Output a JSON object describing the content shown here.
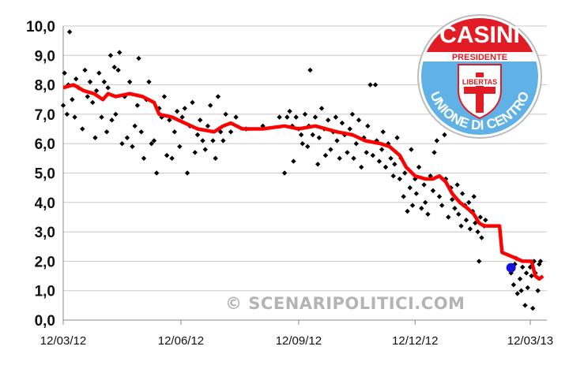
{
  "chart_data": {
    "type": "scatter",
    "x_axis": {
      "kind": "date",
      "start": "2012-03-12",
      "end": "2013-03-25",
      "ticks": [
        {
          "date": "2012-03-12",
          "label": "12/03/12"
        },
        {
          "date": "2012-06-12",
          "label": "12/06/12"
        },
        {
          "date": "2012-09-12",
          "label": "12/09/12"
        },
        {
          "date": "2012-12-12",
          "label": "12/12/12"
        },
        {
          "date": "2013-03-12",
          "label": "12/03/13"
        }
      ]
    },
    "y_axis": {
      "range": [
        0,
        10
      ],
      "ticks": [
        0,
        1,
        2,
        3,
        4,
        5,
        6,
        7,
        8,
        9,
        10
      ],
      "tick_labels": [
        "0,0",
        "1,0",
        "2,0",
        "3,0",
        "4,0",
        "5,0",
        "6,0",
        "7,0",
        "8,0",
        "9,0",
        "10,0"
      ]
    },
    "grid": "horizontal",
    "series": [
      {
        "kind": "polls-scatter",
        "color": "#000000",
        "points": [
          [
            "2012-03-12",
            7.3
          ],
          [
            "2012-03-13",
            8.4
          ],
          [
            "2012-03-15",
            7.0
          ],
          [
            "2012-03-16",
            8.0
          ],
          [
            "2012-03-17",
            9.8
          ],
          [
            "2012-03-19",
            7.5
          ],
          [
            "2012-03-21",
            6.9
          ],
          [
            "2012-03-22",
            8.2
          ],
          [
            "2012-03-24",
            7.9
          ],
          [
            "2012-03-27",
            6.5
          ],
          [
            "2012-03-29",
            8.5
          ],
          [
            "2012-03-31",
            7.6
          ],
          [
            "2012-04-02",
            8.1
          ],
          [
            "2012-04-04",
            7.4
          ],
          [
            "2012-04-06",
            6.2
          ],
          [
            "2012-04-07",
            7.8
          ],
          [
            "2012-04-09",
            8.4
          ],
          [
            "2012-04-11",
            6.9
          ],
          [
            "2012-04-13",
            8.1
          ],
          [
            "2012-04-15",
            6.4
          ],
          [
            "2012-04-16",
            7.9
          ],
          [
            "2012-04-18",
            9.0
          ],
          [
            "2012-04-19",
            6.8
          ],
          [
            "2012-04-21",
            8.6
          ],
          [
            "2012-04-22",
            7.0
          ],
          [
            "2012-04-24",
            8.5
          ],
          [
            "2012-04-25",
            9.1
          ],
          [
            "2012-04-27",
            6.0
          ],
          [
            "2012-04-29",
            7.6
          ],
          [
            "2012-05-01",
            6.2
          ],
          [
            "2012-05-03",
            8.1
          ],
          [
            "2012-05-05",
            5.9
          ],
          [
            "2012-05-07",
            6.6
          ],
          [
            "2012-05-09",
            7.3
          ],
          [
            "2012-05-10",
            8.9
          ],
          [
            "2012-05-12",
            6.4
          ],
          [
            "2012-05-14",
            5.5
          ],
          [
            "2012-05-16",
            7.5
          ],
          [
            "2012-05-18",
            8.1
          ],
          [
            "2012-05-20",
            6.0
          ],
          [
            "2012-05-22",
            6.1
          ],
          [
            "2012-05-24",
            5.0
          ],
          [
            "2012-05-26",
            7.2
          ],
          [
            "2012-05-28",
            6.9
          ],
          [
            "2012-05-30",
            7.6
          ],
          [
            "2012-06-01",
            5.6
          ],
          [
            "2012-06-03",
            6.8
          ],
          [
            "2012-06-05",
            5.5
          ],
          [
            "2012-06-07",
            6.4
          ],
          [
            "2012-06-09",
            7.1
          ],
          [
            "2012-06-11",
            5.9
          ],
          [
            "2012-06-13",
            6.9
          ],
          [
            "2012-06-15",
            7.2
          ],
          [
            "2012-06-17",
            5.0
          ],
          [
            "2012-06-19",
            6.6
          ],
          [
            "2012-06-21",
            7.4
          ],
          [
            "2012-06-23",
            5.7
          ],
          [
            "2012-06-25",
            6.3
          ],
          [
            "2012-06-27",
            6.8
          ],
          [
            "2012-06-29",
            6.1
          ],
          [
            "2012-07-01",
            5.8
          ],
          [
            "2012-07-03",
            6.6
          ],
          [
            "2012-07-05",
            7.3
          ],
          [
            "2012-07-07",
            6.1
          ],
          [
            "2012-07-09",
            5.5
          ],
          [
            "2012-07-11",
            7.6
          ],
          [
            "2012-07-13",
            6.4
          ],
          [
            "2012-07-15",
            6.1
          ],
          [
            "2012-07-17",
            7.0
          ],
          [
            "2012-07-21",
            6.4
          ],
          [
            "2012-07-25",
            6.9
          ],
          [
            "2012-08-02",
            6.5
          ],
          [
            "2012-08-15",
            6.6
          ],
          [
            "2012-08-28",
            6.9
          ],
          [
            "2012-09-01",
            5.0
          ],
          [
            "2012-09-03",
            6.9
          ],
          [
            "2012-09-05",
            7.1
          ],
          [
            "2012-09-07",
            6.6
          ],
          [
            "2012-09-08",
            5.4
          ],
          [
            "2012-09-10",
            6.9
          ],
          [
            "2012-09-12",
            6.5
          ],
          [
            "2012-09-14",
            6.3
          ],
          [
            "2012-09-15",
            6.0
          ],
          [
            "2012-09-17",
            7.0
          ],
          [
            "2012-09-19",
            5.9
          ],
          [
            "2012-09-20",
            6.6
          ],
          [
            "2012-09-21",
            8.5
          ],
          [
            "2012-09-23",
            6.3
          ],
          [
            "2012-09-25",
            6.9
          ],
          [
            "2012-09-27",
            5.3
          ],
          [
            "2012-09-28",
            6.2
          ],
          [
            "2012-09-30",
            7.2
          ],
          [
            "2012-10-02",
            6.5
          ],
          [
            "2012-10-03",
            5.6
          ],
          [
            "2012-10-05",
            6.8
          ],
          [
            "2012-10-07",
            5.8
          ],
          [
            "2012-10-09",
            6.4
          ],
          [
            "2012-10-11",
            6.9
          ],
          [
            "2012-10-12",
            6.1
          ],
          [
            "2012-10-14",
            5.5
          ],
          [
            "2012-10-16",
            6.7
          ],
          [
            "2012-10-18",
            6.3
          ],
          [
            "2012-10-20",
            5.7
          ],
          [
            "2012-10-22",
            6.5
          ],
          [
            "2012-10-24",
            7.0
          ],
          [
            "2012-10-25",
            5.5
          ],
          [
            "2012-10-27",
            6.0
          ],
          [
            "2012-10-29",
            6.8
          ],
          [
            "2012-10-31",
            5.2
          ],
          [
            "2012-11-02",
            6.2
          ],
          [
            "2012-11-04",
            5.7
          ],
          [
            "2012-11-05",
            6.6
          ],
          [
            "2012-11-07",
            8.0
          ],
          [
            "2012-11-09",
            5.6
          ],
          [
            "2012-11-11",
            8.0
          ],
          [
            "2012-11-12",
            6.1
          ],
          [
            "2012-11-14",
            5.4
          ],
          [
            "2012-11-16",
            5.8
          ],
          [
            "2012-11-17",
            6.4
          ],
          [
            "2012-11-19",
            5.2
          ],
          [
            "2012-11-21",
            6.0
          ],
          [
            "2012-11-23",
            5.5
          ],
          [
            "2012-11-25",
            4.9
          ],
          [
            "2012-11-26",
            5.3
          ],
          [
            "2012-11-28",
            6.2
          ],
          [
            "2012-11-30",
            4.8
          ],
          [
            "2012-12-01",
            5.5
          ],
          [
            "2012-12-03",
            4.2
          ],
          [
            "2012-12-04",
            5.0
          ],
          [
            "2012-12-06",
            3.7
          ],
          [
            "2012-12-08",
            4.5
          ],
          [
            "2012-12-09",
            5.8
          ],
          [
            "2012-12-10",
            3.9
          ],
          [
            "2012-12-12",
            4.8
          ],
          [
            "2012-12-13",
            4.3
          ],
          [
            "2012-12-15",
            5.2
          ],
          [
            "2012-12-17",
            3.8
          ],
          [
            "2012-12-19",
            4.6
          ],
          [
            "2012-12-20",
            4.0
          ],
          [
            "2012-12-22",
            3.6
          ],
          [
            "2012-12-24",
            4.9
          ],
          [
            "2012-12-26",
            4.4
          ],
          [
            "2012-12-27",
            5.7
          ],
          [
            "2012-12-29",
            6.1
          ],
          [
            "2012-12-31",
            4.2
          ],
          [
            "2013-01-02",
            3.9
          ],
          [
            "2013-01-04",
            6.3
          ],
          [
            "2013-01-05",
            4.8
          ],
          [
            "2013-01-07",
            3.5
          ],
          [
            "2013-01-09",
            4.5
          ],
          [
            "2013-01-10",
            4.1
          ],
          [
            "2013-01-12",
            3.8
          ],
          [
            "2013-01-14",
            4.6
          ],
          [
            "2013-01-15",
            3.6
          ],
          [
            "2013-01-17",
            3.2
          ],
          [
            "2013-01-18",
            4.3
          ],
          [
            "2013-01-20",
            3.9
          ],
          [
            "2013-01-21",
            3.4
          ],
          [
            "2013-01-23",
            4.0
          ],
          [
            "2013-01-24",
            3.1
          ],
          [
            "2013-01-26",
            3.7
          ],
          [
            "2013-01-27",
            4.2
          ],
          [
            "2013-01-28",
            3.3
          ],
          [
            "2013-01-30",
            3.0
          ],
          [
            "2013-01-31",
            2.0
          ],
          [
            "2013-02-01",
            3.5
          ],
          [
            "2013-02-02",
            2.8
          ],
          [
            "2013-02-04",
            3.2
          ],
          [
            "2013-02-05",
            3.4
          ],
          [
            "2013-02-25",
            1.6
          ],
          [
            "2013-02-27",
            1.2
          ],
          [
            "2013-02-28",
            1.9
          ],
          [
            "2013-03-01",
            2.1
          ],
          [
            "2013-03-02",
            0.9
          ],
          [
            "2013-03-04",
            1.4
          ],
          [
            "2013-03-05",
            1.0
          ],
          [
            "2013-03-06",
            1.8
          ],
          [
            "2013-03-08",
            0.5
          ],
          [
            "2013-03-09",
            1.6
          ],
          [
            "2013-03-10",
            1.1
          ],
          [
            "2013-03-12",
            1.8
          ],
          [
            "2013-03-13",
            1.5
          ],
          [
            "2013-03-14",
            0.4
          ],
          [
            "2013-03-15",
            2.0
          ],
          [
            "2013-03-16",
            1.6
          ],
          [
            "2013-03-18",
            1.0
          ],
          [
            "2013-03-19",
            1.9
          ],
          [
            "2013-03-20",
            2.0
          ]
        ]
      },
      {
        "kind": "trend-line",
        "color": "#ff0000",
        "points": [
          [
            "2012-03-12",
            7.9
          ],
          [
            "2012-03-20",
            8.0
          ],
          [
            "2012-03-28",
            7.8
          ],
          [
            "2012-04-05",
            7.7
          ],
          [
            "2012-04-12",
            7.5
          ],
          [
            "2012-04-16",
            7.7
          ],
          [
            "2012-04-22",
            7.6
          ],
          [
            "2012-05-03",
            7.7
          ],
          [
            "2012-05-13",
            7.6
          ],
          [
            "2012-05-22",
            7.4
          ],
          [
            "2012-05-26",
            7.0
          ],
          [
            "2012-06-05",
            6.9
          ],
          [
            "2012-06-15",
            6.7
          ],
          [
            "2012-06-25",
            6.5
          ],
          [
            "2012-07-08",
            6.4
          ],
          [
            "2012-07-15",
            6.6
          ],
          [
            "2012-07-21",
            6.7
          ],
          [
            "2012-07-30",
            6.5
          ],
          [
            "2012-08-15",
            6.5
          ],
          [
            "2012-09-01",
            6.6
          ],
          [
            "2012-09-12",
            6.5
          ],
          [
            "2012-09-25",
            6.6
          ],
          [
            "2012-10-12",
            6.4
          ],
          [
            "2012-10-24",
            6.3
          ],
          [
            "2012-11-03",
            6.1
          ],
          [
            "2012-11-15",
            6.0
          ],
          [
            "2012-11-22",
            5.9
          ],
          [
            "2012-11-30",
            5.6
          ],
          [
            "2012-12-05",
            5.2
          ],
          [
            "2012-12-12",
            4.9
          ],
          [
            "2012-12-20",
            4.8
          ],
          [
            "2012-12-26",
            4.8
          ],
          [
            "2012-12-31",
            4.9
          ],
          [
            "2013-01-05",
            4.7
          ],
          [
            "2013-01-10",
            4.3
          ],
          [
            "2013-01-16",
            4.0
          ],
          [
            "2013-01-22",
            3.8
          ],
          [
            "2013-01-27",
            3.6
          ],
          [
            "2013-01-31",
            3.3
          ],
          [
            "2013-02-04",
            3.2
          ],
          [
            "2013-02-16",
            3.2
          ],
          [
            "2013-02-18",
            2.3
          ],
          [
            "2013-03-01",
            2.1
          ],
          [
            "2013-03-06",
            2.0
          ],
          [
            "2013-03-13",
            2.0
          ],
          [
            "2013-03-16",
            1.5
          ],
          [
            "2013-03-19",
            1.4
          ],
          [
            "2013-03-22",
            1.5
          ]
        ]
      },
      {
        "kind": "election-result",
        "color": "#1414dc",
        "points": [
          [
            "2013-02-25",
            1.78
          ]
        ]
      }
    ]
  },
  "watermark": "© SCENARIPOLITICI.COM",
  "logo": {
    "top_text": "CASINI",
    "sub_text": "PRESIDENTE",
    "shield_text": "LIBERTAS",
    "ring_text": "UNIONE DI CENTRO",
    "colors": {
      "red": "#e11c24",
      "blue": "#5fb1e6",
      "white": "#ffffff"
    }
  }
}
